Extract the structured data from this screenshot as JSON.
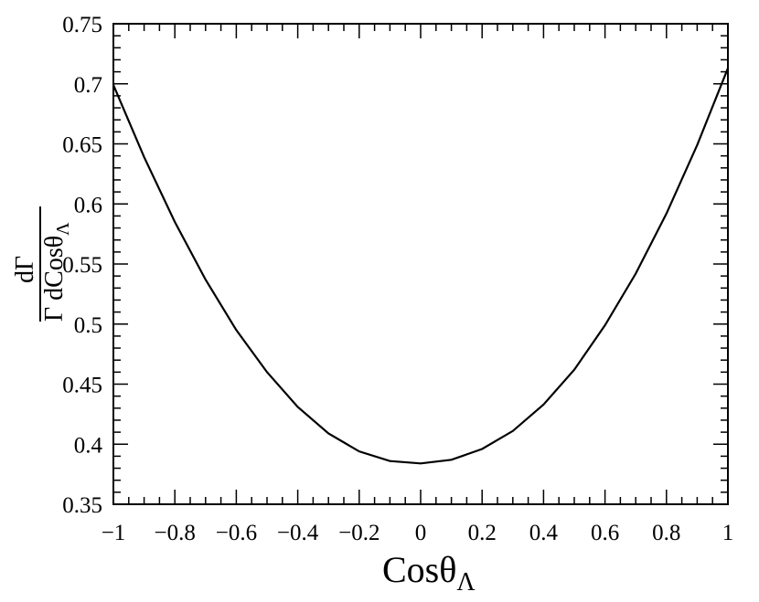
{
  "chart_data": {
    "type": "line",
    "title": "",
    "xlabel": "Cosθ_Λ",
    "xlabel_main": "Cosθ",
    "xlabel_sub": "Λ",
    "ylabel": "dΓ / Γ dCosθ_Λ",
    "ylabel_numerator": "dΓ",
    "ylabel_denominator_main": "Γ dCosθ",
    "ylabel_denominator_sub": "Λ",
    "xlim": [
      -1,
      1
    ],
    "ylim": [
      0.35,
      0.75
    ],
    "grid": false,
    "x_ticks": [
      -1,
      -0.8,
      -0.6,
      -0.4,
      -0.2,
      0,
      0.2,
      0.4,
      0.6,
      0.8,
      1
    ],
    "x_tick_labels": [
      "−1",
      "−0.8",
      "−0.6",
      "−0.4",
      "−0.2",
      "0",
      "0.2",
      "0.4",
      "0.6",
      "0.8",
      "1"
    ],
    "y_ticks": [
      0.35,
      0.4,
      0.45,
      0.5,
      0.55,
      0.6,
      0.65,
      0.7,
      0.75
    ],
    "y_tick_labels": [
      "0.35",
      "0.4",
      "0.45",
      "0.5",
      "0.55",
      "0.6",
      "0.65",
      "0.7",
      "0.75"
    ],
    "series": [
      {
        "x": [
          -1,
          -0.9,
          -0.8,
          -0.7,
          -0.6,
          -0.5,
          -0.4,
          -0.3,
          -0.2,
          -0.1,
          0,
          0.1,
          0.2,
          0.3,
          0.4,
          0.5,
          0.6,
          0.7,
          0.8,
          0.9,
          1
        ],
        "y": [
          0.699,
          0.639,
          0.585,
          0.537,
          0.495,
          0.46,
          0.431,
          0.409,
          0.394,
          0.386,
          0.384,
          0.387,
          0.396,
          0.411,
          0.433,
          0.462,
          0.499,
          0.542,
          0.592,
          0.649,
          0.713
        ],
        "color": "#000000"
      }
    ]
  }
}
